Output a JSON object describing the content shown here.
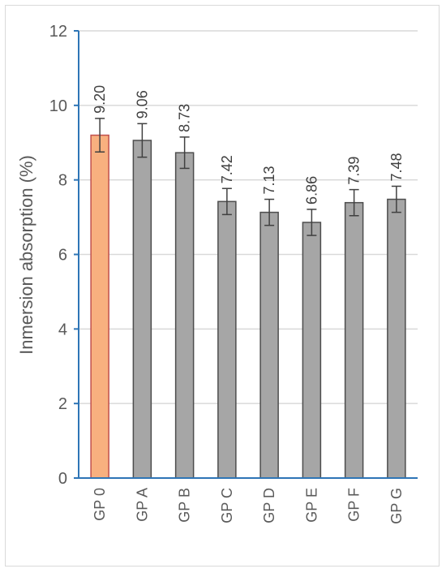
{
  "chart_data": {
    "type": "bar",
    "categories": [
      "GP 0",
      "GP A",
      "GP B",
      "GP C",
      "GP D",
      "GP E",
      "GP F",
      "GP G"
    ],
    "values": [
      9.2,
      9.06,
      8.73,
      7.42,
      7.13,
      6.86,
      7.39,
      7.48
    ],
    "value_labels": [
      "9.20",
      "9.06",
      "8.73",
      "7.42",
      "7.13",
      "6.86",
      "7.39",
      "7.48"
    ],
    "error": [
      0.45,
      0.45,
      0.42,
      0.35,
      0.35,
      0.35,
      0.35,
      0.35
    ],
    "title": "",
    "xlabel": "",
    "ylabel": "Inmersion absorption (%)",
    "ylim": [
      0,
      12
    ],
    "yticks": [
      "0",
      "2",
      "4",
      "6",
      "8",
      "10",
      "12"
    ],
    "grid": true,
    "colors": {
      "highlight_fill": "#F8B07F",
      "highlight_stroke": "#C0504D",
      "bar_fill": "#A6A6A6",
      "bar_stroke": "#4D4D4D",
      "axis": "#2E75B6",
      "grid": "#D9D9D9",
      "error_bar": "#404040"
    }
  }
}
